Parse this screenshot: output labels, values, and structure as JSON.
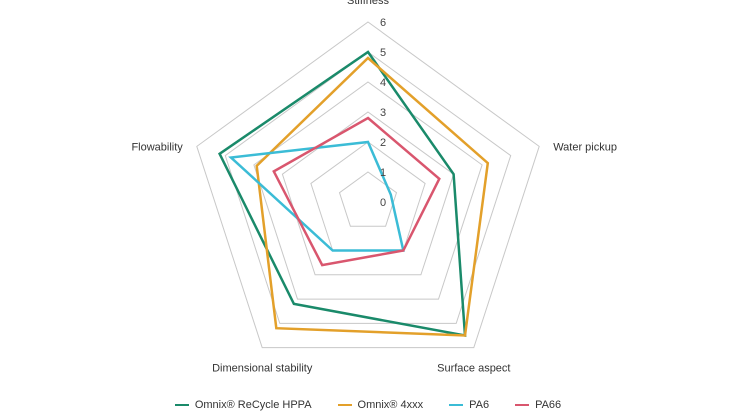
{
  "chart_data": {
    "type": "radar",
    "axes": [
      "Stiffness",
      "Water pickup",
      "Surface aspect",
      "Dimensional stability",
      "Flowability"
    ],
    "rlim": [
      0,
      6
    ],
    "ticks": [
      "0",
      "1",
      "2",
      "3",
      "4",
      "5",
      "6"
    ],
    "grid": true,
    "legend_position": "bottom",
    "series": [
      {
        "name": "Omnix® ReCycle HPPA",
        "color": "#1a8a6a",
        "values": [
          5,
          3,
          5.5,
          4.2,
          5.2
        ]
      },
      {
        "name": "Omnix® 4xxx",
        "color": "#e3a02a",
        "values": [
          4.8,
          4.2,
          5.5,
          5.2,
          3.9
        ]
      },
      {
        "name": "PA6",
        "color": "#3bbcd6",
        "values": [
          2,
          0.8,
          2,
          2,
          4.8
        ]
      },
      {
        "name": "PA66",
        "color": "#d9566e",
        "values": [
          2.8,
          2.5,
          2,
          2.6,
          3.3
        ]
      }
    ]
  }
}
